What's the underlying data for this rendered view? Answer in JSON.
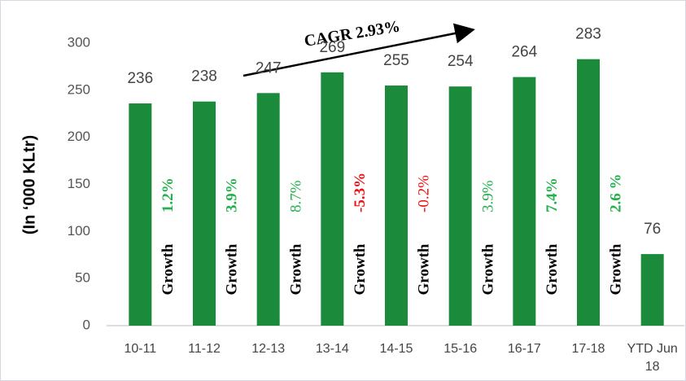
{
  "chart_data": {
    "type": "bar",
    "y_label": "(In ‘000 KLtr)",
    "categories": [
      "10-11",
      "11-12",
      "12-13",
      "13-14",
      "14-15",
      "15-16",
      "16-17",
      "17-18",
      "YTD Jun 18"
    ],
    "values": [
      236,
      238,
      247,
      269,
      255,
      254,
      264,
      283,
      76
    ],
    "color": "#1b8a3a",
    "ylim": [
      0,
      300
    ],
    "yticks": [
      0,
      50,
      100,
      150,
      200,
      250,
      300
    ],
    "grid": false,
    "growth": [
      {
        "word": "Growth",
        "value": "1.2%",
        "color": "#22b14c",
        "bold": true
      },
      {
        "word": "Growth",
        "value": "3.9%",
        "color": "#22b14c",
        "bold": true
      },
      {
        "word": "Growth",
        "value": "8.7%",
        "color": "#22b14c",
        "bold": false
      },
      {
        "word": "Growth",
        "value": "-5.3%",
        "color": "#ee1111",
        "bold": true
      },
      {
        "word": "Growth",
        "value": "-0.2%",
        "color": "#ee1111",
        "bold": false
      },
      {
        "word": "Growth",
        "value": "3.9%",
        "color": "#22b14c",
        "bold": false
      },
      {
        "word": "Growth",
        "value": "7.4%",
        "color": "#22b14c",
        "bold": true
      },
      {
        "word": "Growth",
        "value": "2.6 %",
        "color": "#22b14c",
        "bold": true
      }
    ],
    "annotation": "CAGR 2.93%"
  }
}
